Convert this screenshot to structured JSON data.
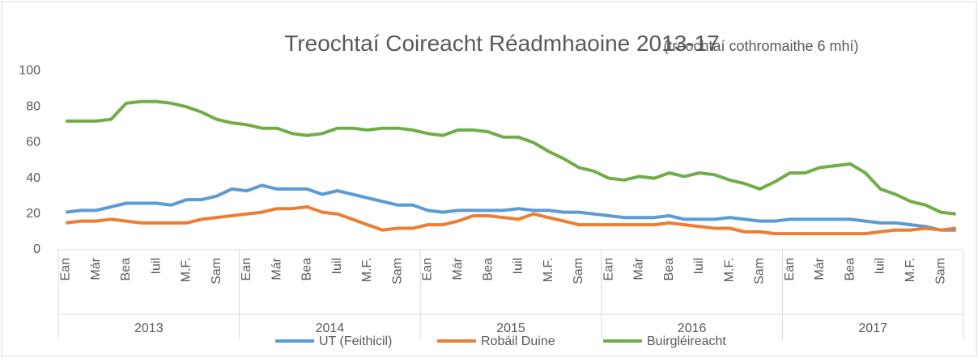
{
  "chart_data": {
    "type": "line",
    "title": "Treochtaí Coireacht Réadmhaoine 2013-17",
    "subtitle": "(treochtaí cothromaithe 6 mhí)",
    "categories": [
      "Ean",
      null,
      "Már",
      null,
      "Bea",
      null,
      "Iuil",
      null,
      "M.F.",
      null,
      "Sam",
      null,
      "Ean",
      null,
      "Már",
      null,
      "Bea",
      null,
      "Iuil",
      null,
      "M.F.",
      null,
      "Sam",
      null,
      "Ean",
      null,
      "Már",
      null,
      "Bea",
      null,
      "Iuil",
      null,
      "M.F.",
      null,
      "Sam",
      null,
      "Ean",
      null,
      "Már",
      null,
      "Bea",
      null,
      "Iuil",
      null,
      "M.F.",
      null,
      "Sam",
      null,
      "Ean",
      null,
      "Már",
      null,
      "Bea",
      null,
      "Iuil",
      null,
      "M.F.",
      null,
      "Sam",
      null
    ],
    "years": [
      "2013",
      "2014",
      "2015",
      "2016",
      "2017"
    ],
    "series": [
      {
        "name": "UT (Feithicil)",
        "color": "#5b9bd5",
        "values": [
          21,
          22,
          22,
          24,
          26,
          26,
          26,
          25,
          28,
          28,
          30,
          34,
          33,
          36,
          34,
          34,
          34,
          31,
          33,
          31,
          29,
          27,
          25,
          25,
          22,
          21,
          22,
          22,
          22,
          22,
          23,
          22,
          22,
          21,
          21,
          20,
          19,
          18,
          18,
          18,
          19,
          17,
          17,
          17,
          18,
          17,
          16,
          16,
          17,
          17,
          17,
          17,
          17,
          16,
          15,
          15,
          14,
          13,
          11,
          11
        ]
      },
      {
        "name": "Robáil Duine",
        "color": "#ed7d31",
        "values": [
          15,
          16,
          16,
          17,
          16,
          15,
          15,
          15,
          15,
          17,
          18,
          19,
          20,
          21,
          23,
          23,
          24,
          21,
          20,
          17,
          14,
          11,
          12,
          12,
          14,
          14,
          16,
          19,
          19,
          18,
          17,
          20,
          18,
          16,
          14,
          14,
          14,
          14,
          14,
          14,
          15,
          14,
          13,
          12,
          12,
          10,
          10,
          9,
          9,
          9,
          9,
          9,
          9,
          9,
          10,
          11,
          11,
          12,
          11,
          12
        ]
      },
      {
        "name": "Buirgléireacht",
        "color": "#70ad47",
        "values": [
          72,
          72,
          72,
          73,
          82,
          83,
          83,
          82,
          80,
          77,
          73,
          71,
          70,
          68,
          68,
          65,
          64,
          65,
          68,
          68,
          67,
          68,
          68,
          67,
          65,
          64,
          67,
          67,
          66,
          63,
          63,
          60,
          55,
          51,
          46,
          44,
          40,
          39,
          41,
          40,
          43,
          41,
          43,
          42,
          39,
          37,
          34,
          38,
          43,
          43,
          46,
          47,
          48,
          43,
          34,
          31,
          27,
          25,
          21,
          20
        ]
      }
    ],
    "ylim": [
      0,
      100
    ],
    "yticks": [
      0,
      20,
      40,
      60,
      80,
      100
    ],
    "grid": false,
    "legend": "bottom"
  }
}
